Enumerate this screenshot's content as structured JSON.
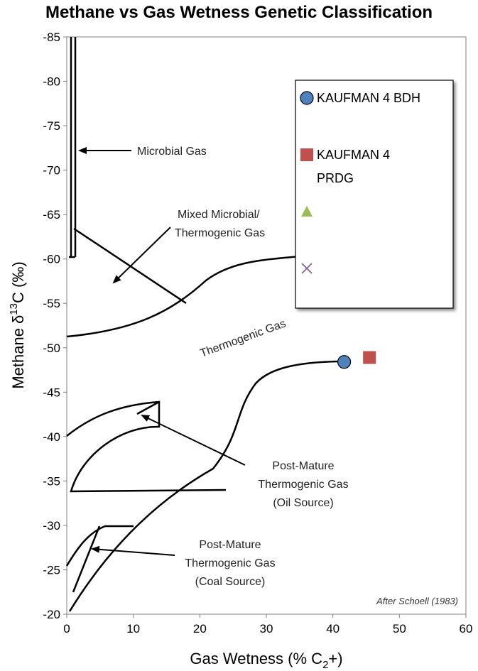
{
  "chart_data": {
    "type": "scatter",
    "title": "Methane vs Gas Wetness Genetic Classification",
    "xlabel_main": "Gas Wetness (% C",
    "xlabel_sub": "2",
    "xlabel_end": "+)",
    "ylabel_main": "Methane  δ",
    "ylabel_sup": "13",
    "ylabel_end": "C (‰)",
    "xlim": [
      0,
      60
    ],
    "ylim": [
      -20,
      -85
    ],
    "xticks": [
      "0",
      "10",
      "20",
      "30",
      "40",
      "50",
      "60"
    ],
    "yticks": [
      "-85",
      "-80",
      "-75",
      "-70",
      "-65",
      "-60",
      "-55",
      "-50",
      "-45",
      "-40",
      "-35",
      "-30",
      "-25",
      "-20"
    ],
    "series": [
      {
        "name": "KAUFMAN 4 BDH",
        "marker": "circle",
        "color": "#4f81bd",
        "points": [
          [
            41.7,
            -48.4
          ]
        ]
      },
      {
        "name": "KAUFMAN 4 PRDG",
        "marker": "square",
        "color": "#c0504d",
        "points": [
          [
            45.5,
            -48.9
          ]
        ]
      },
      {
        "name": "",
        "marker": "triangle",
        "color": "#9bbb59",
        "points": []
      },
      {
        "name": "",
        "marker": "x",
        "color": "#8064a2",
        "points": []
      }
    ],
    "legend": {
      "position": "top-right",
      "entries": [
        "KAUFMAN 4 BDH",
        "KAUFMAN 4\nPRDG",
        "",
        ""
      ]
    },
    "annotations": {
      "microbial": "Microbial Gas",
      "mixed": [
        "Mixed Microbial/",
        "Thermogenic Gas"
      ],
      "thermogenic": "Thermogenic Gas",
      "post_oil": [
        "Post-Mature",
        "Thermogenic Gas",
        "(Oil Source)"
      ],
      "post_coal": [
        "Post-Mature",
        "Thermogenic Gas",
        "(Coal Source)"
      ],
      "credit": "After Schoell (1983)"
    }
  }
}
